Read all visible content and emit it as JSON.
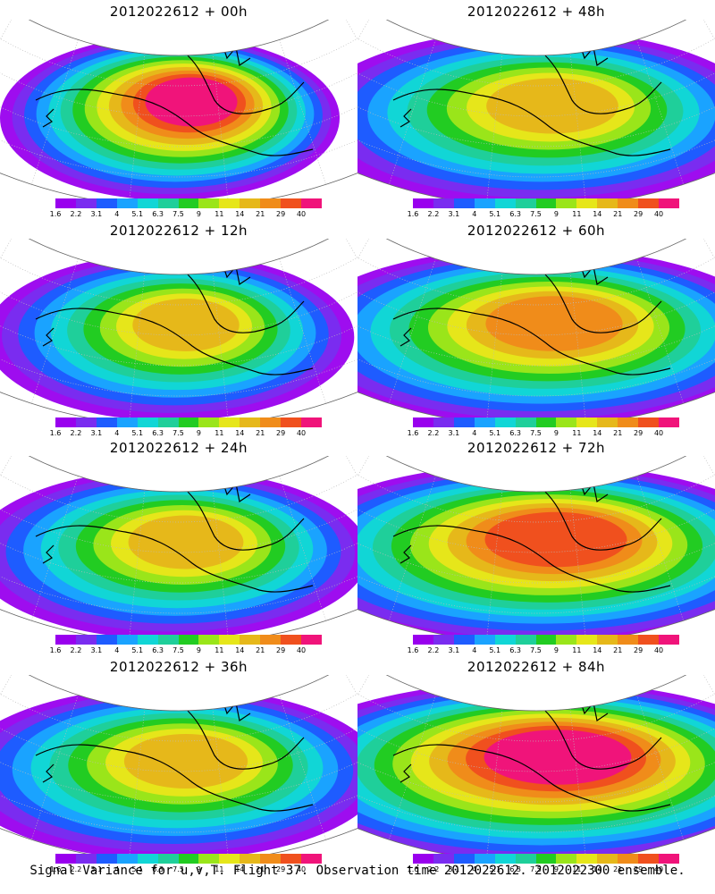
{
  "panels": [
    {
      "title": "2012022612 + 00h",
      "forecast_hour": 0,
      "max_level": 12
    },
    {
      "title": "2012022612 + 48h",
      "forecast_hour": 48,
      "max_level": 9
    },
    {
      "title": "2012022612 + 12h",
      "forecast_hour": 12,
      "max_level": 9
    },
    {
      "title": "2012022612 + 60h",
      "forecast_hour": 60,
      "max_level": 10
    },
    {
      "title": "2012022612 + 24h",
      "forecast_hour": 24,
      "max_level": 9
    },
    {
      "title": "2012022612 + 72h",
      "forecast_hour": 72,
      "max_level": 11
    },
    {
      "title": "2012022612 + 36h",
      "forecast_hour": 36,
      "max_level": 9
    },
    {
      "title": "2012022612 + 84h",
      "forecast_hour": 84,
      "max_level": 12
    }
  ],
  "colorbar": {
    "ticks": [
      "1.6",
      "2.2",
      "3.1",
      "4",
      "5.1",
      "6.3",
      "7.5",
      "9",
      "11",
      "14",
      "21",
      "29",
      "40"
    ],
    "colors": [
      "#9900ee",
      "#7a2cf0",
      "#1e5cff",
      "#1aa3ff",
      "#11d6d6",
      "#1fcf9a",
      "#22cc22",
      "#9ae51a",
      "#e6e61a",
      "#e6b81a",
      "#f08c1a",
      "#f0501e",
      "#f0147a"
    ]
  },
  "footer": "Signal Variance for u,v,T. Flight 37. Observation time 2012022612. 2012022300 ensemble."
}
